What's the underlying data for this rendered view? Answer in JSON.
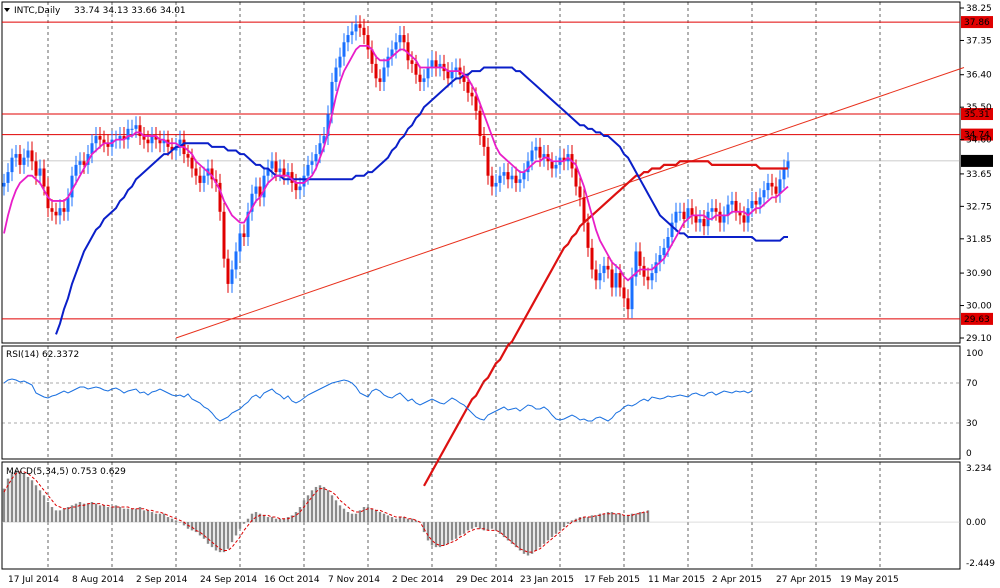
{
  "header": {
    "symbol_label": "INTC,Daily",
    "ohlc": "33.74 34.13 33.66 34.01"
  },
  "rsi_panel": {
    "label": "RSI(14) 62.3372",
    "levels": [
      "100",
      "70",
      "30",
      "0"
    ]
  },
  "macd_panel": {
    "label": "MACD(5,34,5) 0.753 0.629",
    "levels": [
      "3.234",
      "0.00",
      "-2.449"
    ]
  },
  "colors": {
    "ma_fast": "#e81ec8",
    "ma_mid": "#0a1fc9",
    "ma_slow": "#dd1111",
    "trendline": "#e8311d",
    "level": "#e00000",
    "candle_up": "#1a70ff",
    "candle_down": "#e00000",
    "rsi": "#1a70e0",
    "macd_hist": "#8a8a8a",
    "macd_signal": "#dd0000",
    "current_price_bg": "#000000"
  },
  "chart_data": [
    {
      "type": "candlestick",
      "symbol": "INTC",
      "timeframe": "Daily",
      "ylim": [
        29.1,
        38.25
      ],
      "price_axis_ticks": [
        "38.25",
        "37.35",
        "36.40",
        "35.50",
        "34.60",
        "33.65",
        "32.75",
        "31.85",
        "30.90",
        "30.00",
        "29.10"
      ],
      "x_tick_labels": [
        "17 Jul 2014",
        "8 Aug 2014",
        "2 Sep 2014",
        "24 Sep 2014",
        "16 Oct 2014",
        "7 Nov 2014",
        "2 Dec 2014",
        "29 Dec 2014",
        "23 Jan 2015",
        "17 Feb 2015",
        "11 Mar 2015",
        "2 Apr 2015",
        "27 Apr 2015",
        "19 May 2015"
      ],
      "x_tick_index": [
        0,
        16,
        32,
        48,
        64,
        80,
        96,
        112,
        128,
        144,
        160,
        176,
        192,
        208
      ],
      "horizontal_levels": [
        {
          "value": 37.86,
          "label": "37.86"
        },
        {
          "value": 35.31,
          "label": "35.31"
        },
        {
          "value": 34.74,
          "label": "34.74"
        },
        {
          "value": 29.63,
          "label": "29.63"
        }
      ],
      "current_price": {
        "value": 34.01,
        "label": "34.01"
      },
      "trendline": {
        "from": [
          43,
          29.1
        ],
        "to": [
          240,
          36.6
        ]
      },
      "closes": [
        33.4,
        33.7,
        34.1,
        34.2,
        33.9,
        34.1,
        34.3,
        34.0,
        33.6,
        33.8,
        33.3,
        32.7,
        32.6,
        32.5,
        32.7,
        32.6,
        33.0,
        33.6,
        33.9,
        34.0,
        33.9,
        34.2,
        34.5,
        34.7,
        34.6,
        34.5,
        34.4,
        34.6,
        34.6,
        34.7,
        34.6,
        34.9,
        34.9,
        35.0,
        34.7,
        34.6,
        34.5,
        34.7,
        34.6,
        34.5,
        34.6,
        34.4,
        34.3,
        34.4,
        34.6,
        34.2,
        34.1,
        33.8,
        33.6,
        33.4,
        33.6,
        33.8,
        33.5,
        33.4,
        32.6,
        31.3,
        30.6,
        31.0,
        31.5,
        32.0,
        31.9,
        32.6,
        33.1,
        33.3,
        33.0,
        33.6,
        33.8,
        34.0,
        33.7,
        33.8,
        33.6,
        33.7,
        33.4,
        33.2,
        33.3,
        33.6,
        33.9,
        34.0,
        34.2,
        34.5,
        34.7,
        35.3,
        36.2,
        36.6,
        36.9,
        37.3,
        37.5,
        37.6,
        37.8,
        37.7,
        37.5,
        37.1,
        36.7,
        36.3,
        36.2,
        36.6,
        36.9,
        37.1,
        37.3,
        37.5,
        37.3,
        36.8,
        36.7,
        36.4,
        36.2,
        36.3,
        36.6,
        36.8,
        36.6,
        36.7,
        36.5,
        36.3,
        36.5,
        36.6,
        36.4,
        36.2,
        35.9,
        35.8,
        35.4,
        34.7,
        34.4,
        33.6,
        33.3,
        33.4,
        33.6,
        33.7,
        33.5,
        33.6,
        33.4,
        33.5,
        33.7,
        34.0,
        34.3,
        34.4,
        34.1,
        34.2,
        34.0,
        33.8,
        33.9,
        34.1,
        34.0,
        34.2,
        33.8,
        33.3,
        33.0,
        32.3,
        31.6,
        31.0,
        30.7,
        30.9,
        31.1,
        31.0,
        30.5,
        30.9,
        30.5,
        30.2,
        29.9,
        30.8,
        31.5,
        31.1,
        30.8,
        30.7,
        30.9,
        31.2,
        31.4,
        31.6,
        31.9,
        32.3,
        32.6,
        32.6,
        32.4,
        32.7,
        32.5,
        32.3,
        32.4,
        32.2,
        32.6,
        32.7,
        32.6,
        32.3,
        32.5,
        32.8,
        32.9,
        32.6,
        32.5,
        32.3,
        32.7,
        32.9,
        32.8,
        33.0,
        33.2,
        33.4,
        33.3,
        33.1,
        33.5,
        33.8,
        34.0
      ],
      "ma_fast": [
        32.0,
        32.5,
        32.9,
        33.2,
        33.4,
        33.5,
        33.6,
        33.6,
        33.5,
        33.4,
        33.2,
        33.0,
        32.9,
        32.9,
        32.9,
        32.9,
        33.0,
        33.2,
        33.4,
        33.6,
        33.8,
        34.0,
        34.2,
        34.3,
        34.4,
        34.5,
        34.5,
        34.5,
        34.6,
        34.6,
        34.6,
        34.7,
        34.7,
        34.8,
        34.8,
        34.7,
        34.7,
        34.7,
        34.7,
        34.6,
        34.6,
        34.5,
        34.5,
        34.5,
        34.4,
        34.4,
        34.3,
        34.2,
        34.0,
        33.9,
        33.8,
        33.7,
        33.6,
        33.4,
        33.2,
        32.9,
        32.7,
        32.5,
        32.4,
        32.3,
        32.3,
        32.5,
        32.7,
        32.9,
        33.0,
        33.2,
        33.4,
        33.5,
        33.6,
        33.6,
        33.6,
        33.6,
        33.5,
        33.4,
        33.4,
        33.4,
        33.5,
        33.6,
        33.8,
        34.1,
        34.4,
        34.8,
        35.3,
        35.8,
        36.2,
        36.5,
        36.7,
        36.9,
        37.1,
        37.2,
        37.2,
        37.2,
        37.1,
        36.9,
        36.8,
        36.8,
        36.8,
        36.9,
        37.0,
        37.1,
        37.1,
        37.0,
        36.9,
        36.8,
        36.6,
        36.6,
        36.6,
        36.6,
        36.6,
        36.6,
        36.6,
        36.5,
        36.5,
        36.5,
        36.5,
        36.4,
        36.3,
        36.1,
        35.9,
        35.6,
        35.3,
        35.0,
        34.7,
        34.4,
        34.2,
        34.1,
        34.0,
        33.9,
        33.8,
        33.7,
        33.7,
        33.8,
        33.9,
        34.0,
        34.0,
        34.1,
        34.1,
        34.0,
        34.0,
        34.0,
        34.0,
        34.1,
        34.0,
        33.9,
        33.6,
        33.3,
        32.9,
        32.5,
        32.1,
        31.8,
        31.6,
        31.4,
        31.2,
        31.1,
        31.0,
        30.8,
        30.7,
        30.8,
        30.9,
        31.0,
        31.0,
        31.0,
        31.0,
        31.1,
        31.2,
        31.3,
        31.5,
        31.7,
        31.9,
        32.1,
        32.3,
        32.4,
        32.5,
        32.5,
        32.5,
        32.5,
        32.4,
        32.4,
        32.5,
        32.5,
        32.5,
        32.5,
        32.6,
        32.6,
        32.6,
        32.6,
        32.5,
        32.6,
        32.7,
        32.7,
        32.8,
        32.9,
        33.0,
        33.0,
        33.1,
        33.2,
        33.3
      ],
      "ma_mid": [
        29.2,
        29.5,
        29.9,
        30.2,
        30.6,
        30.9,
        31.2,
        31.5,
        31.7,
        31.9,
        32.1,
        32.2,
        32.4,
        32.5,
        32.6,
        32.7,
        32.9,
        33.0,
        33.2,
        33.3,
        33.5,
        33.6,
        33.7,
        33.8,
        33.9,
        34.0,
        34.1,
        34.2,
        34.2,
        34.3,
        34.4,
        34.4,
        34.5,
        34.5,
        34.5,
        34.5,
        34.5,
        34.5,
        34.5,
        34.4,
        34.4,
        34.4,
        34.4,
        34.3,
        34.3,
        34.3,
        34.2,
        34.2,
        34.1,
        34.0,
        33.9,
        33.9,
        33.8,
        33.8,
        33.7,
        33.6,
        33.6,
        33.5,
        33.5,
        33.5,
        33.5,
        33.5,
        33.5,
        33.5,
        33.5,
        33.5,
        33.5,
        33.5,
        33.5,
        33.5,
        33.5,
        33.5,
        33.5,
        33.5,
        33.5,
        33.6,
        33.6,
        33.6,
        33.7,
        33.7,
        33.8,
        33.9,
        34.0,
        34.1,
        34.3,
        34.4,
        34.6,
        34.7,
        34.9,
        35.0,
        35.2,
        35.3,
        35.5,
        35.6,
        35.7,
        35.8,
        35.9,
        36.0,
        36.1,
        36.2,
        36.3,
        36.3,
        36.4,
        36.4,
        36.5,
        36.5,
        36.5,
        36.6,
        36.6,
        36.6,
        36.6,
        36.6,
        36.6,
        36.6,
        36.6,
        36.5,
        36.5,
        36.4,
        36.3,
        36.2,
        36.1,
        36.0,
        35.9,
        35.8,
        35.7,
        35.6,
        35.5,
        35.4,
        35.3,
        35.2,
        35.1,
        35.0,
        35.0,
        34.9,
        34.9,
        34.8,
        34.8,
        34.7,
        34.7,
        34.6,
        34.5,
        34.4,
        34.2,
        34.1,
        33.9,
        33.7,
        33.5,
        33.3,
        33.1,
        32.9,
        32.7,
        32.5,
        32.4,
        32.3,
        32.2,
        32.1,
        32.0,
        32.0,
        31.9,
        31.9,
        31.9,
        31.9,
        31.9,
        31.9,
        31.9,
        31.9,
        31.9,
        31.9,
        31.9,
        31.9,
        31.9,
        31.9,
        31.9,
        31.9,
        31.9,
        31.8,
        31.8,
        31.8,
        31.8,
        31.8,
        31.8,
        31.8,
        31.9,
        31.9
      ],
      "ma_slow": [
        25.0,
        25.2,
        25.4,
        25.6,
        25.8,
        26.0,
        26.2,
        26.4,
        26.6,
        26.8,
        27.0,
        27.2,
        27.4,
        27.5,
        27.7,
        27.9,
        28.0,
        28.2,
        28.4,
        28.5,
        28.7,
        28.9,
        29.0,
        29.2,
        29.4,
        29.6,
        29.8,
        30.0,
        30.2,
        30.4,
        30.6,
        30.8,
        31.0,
        31.2,
        31.4,
        31.6,
        31.7,
        31.9,
        32.0,
        32.2,
        32.3,
        32.4,
        32.5,
        32.6,
        32.7,
        32.8,
        32.9,
        33.0,
        33.1,
        33.2,
        33.3,
        33.4,
        33.5,
        33.6,
        33.6,
        33.7,
        33.7,
        33.8,
        33.8,
        33.8,
        33.9,
        33.9,
        33.9,
        33.9,
        34.0,
        34.0,
        34.0,
        34.0,
        34.0,
        34.0,
        34.0,
        34.0,
        33.9,
        33.9,
        33.9,
        33.9,
        33.9,
        33.9,
        33.9,
        33.9,
        33.9,
        33.9,
        33.9,
        33.9,
        33.8,
        33.8,
        33.8,
        33.8,
        33.8,
        33.8,
        33.8,
        33.8
      ]
    },
    {
      "type": "line",
      "name": "RSI(14)",
      "ylim": [
        0,
        100
      ],
      "levels": [
        70,
        30
      ],
      "values": [
        70,
        73,
        74,
        73,
        71,
        72,
        70,
        68,
        60,
        58,
        56,
        55,
        57,
        58,
        60,
        62,
        60,
        62,
        64,
        66,
        66,
        64,
        65,
        66,
        65,
        63,
        62,
        64,
        65,
        63,
        60,
        62,
        63,
        64,
        60,
        61,
        58,
        61,
        62,
        64,
        62,
        60,
        58,
        57,
        58,
        56,
        59,
        54,
        52,
        50,
        46,
        44,
        40,
        35,
        32,
        34,
        36,
        40,
        42,
        44,
        48,
        51,
        56,
        58,
        55,
        60,
        62,
        64,
        60,
        58,
        54,
        57,
        52,
        50,
        52,
        55,
        58,
        60,
        62,
        64,
        66,
        68,
        70,
        71,
        72,
        73,
        72,
        70,
        66,
        60,
        58,
        56,
        62,
        64,
        62,
        58,
        56,
        55,
        58,
        60,
        56,
        52,
        54,
        50,
        48,
        50,
        52,
        54,
        52,
        50,
        49,
        52,
        55,
        53,
        50,
        48,
        44,
        40,
        36,
        34,
        33,
        38,
        40,
        42,
        44,
        46,
        43,
        44,
        45,
        42,
        45,
        48,
        47,
        44,
        44,
        46,
        43,
        38,
        34,
        33,
        34,
        36,
        38,
        36,
        33,
        34,
        32,
        32,
        35,
        36,
        34,
        32,
        35,
        40,
        42,
        46,
        48,
        47,
        49,
        52,
        54,
        52,
        56,
        55,
        54,
        55,
        57,
        56,
        57,
        58,
        57,
        56,
        59,
        60,
        58,
        57,
        60,
        61,
        58,
        60,
        62,
        61,
        60,
        62,
        61,
        62,
        60,
        62
      ]
    },
    {
      "type": "bar",
      "name": "MACD(5,34,5)",
      "ylim": [
        -2.449,
        3.234
      ],
      "histogram": [
        2.0,
        2.6,
        3.0,
        3.1,
        3.0,
        2.9,
        2.7,
        2.5,
        2.2,
        1.9,
        1.6,
        1.2,
        0.9,
        0.7,
        0.7,
        0.8,
        0.9,
        1.0,
        1.1,
        1.2,
        1.1,
        1.1,
        1.2,
        1.1,
        1.0,
        1.0,
        0.9,
        0.9,
        1.0,
        0.9,
        0.8,
        0.8,
        0.8,
        0.8,
        0.9,
        0.7,
        0.7,
        0.6,
        0.5,
        0.5,
        0.5,
        0.3,
        0.2,
        0.1,
        0.0,
        -0.2,
        -0.4,
        -0.5,
        -0.6,
        -0.8,
        -1.0,
        -1.3,
        -1.5,
        -1.7,
        -1.8,
        -1.8,
        -1.6,
        -1.2,
        -0.8,
        -0.4,
        -0.1,
        0.2,
        0.5,
        0.6,
        0.5,
        0.4,
        0.3,
        0.3,
        0.2,
        0.2,
        0.2,
        0.3,
        0.4,
        0.6,
        0.9,
        1.3,
        1.6,
        1.9,
        2.1,
        2.2,
        2.1,
        1.9,
        1.6,
        1.3,
        1.0,
        0.8,
        0.6,
        0.5,
        0.5,
        0.7,
        0.9,
        0.9,
        0.8,
        0.7,
        0.6,
        0.5,
        0.4,
        0.3,
        0.2,
        0.3,
        0.3,
        0.2,
        0.2,
        0.1,
        0.0,
        -0.6,
        -1.1,
        -1.4,
        -1.5,
        -1.5,
        -1.4,
        -1.3,
        -1.1,
        -1.0,
        -0.8,
        -0.7,
        -0.5,
        -0.4,
        -0.3,
        -0.4,
        -0.5,
        -0.5,
        -0.4,
        -0.5,
        -0.7,
        -0.9,
        -1.1,
        -1.3,
        -1.5,
        -1.7,
        -1.9,
        -2.0,
        -1.9,
        -1.7,
        -1.5,
        -1.3,
        -1.1,
        -0.9,
        -0.7,
        -0.5,
        -0.3,
        -0.1,
        0.1,
        0.2,
        0.3,
        0.3,
        0.3,
        0.4,
        0.4,
        0.5,
        0.5,
        0.6,
        0.6,
        0.5,
        0.5,
        0.4,
        0.4,
        0.5,
        0.5,
        0.6,
        0.6,
        0.7
      ],
      "signal": [
        1.8,
        2.2,
        2.6,
        2.9,
        3.0,
        3.0,
        2.9,
        2.7,
        2.5,
        2.2,
        1.9,
        1.6,
        1.3,
        1.0,
        0.9,
        0.8,
        0.8,
        0.9,
        0.9,
        1.0,
        1.0,
        1.1,
        1.1,
        1.1,
        1.1,
        1.0,
        1.0,
        0.9,
        0.9,
        0.9,
        0.9,
        0.9,
        0.8,
        0.8,
        0.8,
        0.8,
        0.7,
        0.7,
        0.6,
        0.6,
        0.5,
        0.4,
        0.3,
        0.2,
        0.1,
        0.0,
        -0.2,
        -0.3,
        -0.5,
        -0.6,
        -0.8,
        -1.0,
        -1.2,
        -1.4,
        -1.6,
        -1.7,
        -1.7,
        -1.5,
        -1.2,
        -0.9,
        -0.5,
        -0.2,
        0.1,
        0.3,
        0.4,
        0.4,
        0.4,
        0.3,
        0.3,
        0.2,
        0.2,
        0.2,
        0.3,
        0.4,
        0.6,
        0.9,
        1.2,
        1.5,
        1.8,
        2.0,
        2.0,
        1.9,
        1.8,
        1.6,
        1.3,
        1.1,
        0.9,
        0.7,
        0.6,
        0.6,
        0.7,
        0.8,
        0.8,
        0.7,
        0.7,
        0.6,
        0.5,
        0.4,
        0.3,
        0.3,
        0.3,
        0.2,
        0.2,
        0.1,
        0.0,
        -0.4,
        -0.8,
        -1.1,
        -1.3,
        -1.4,
        -1.4,
        -1.3,
        -1.2,
        -1.1,
        -0.9,
        -0.8,
        -0.6,
        -0.5,
        -0.4,
        -0.4,
        -0.4,
        -0.5,
        -0.5,
        -0.5,
        -0.6,
        -0.8,
        -1.0,
        -1.2,
        -1.4,
        -1.6,
        -1.7,
        -1.8,
        -1.8,
        -1.7,
        -1.6,
        -1.4,
        -1.2,
        -1.0,
        -0.8,
        -0.6,
        -0.4,
        -0.2,
        0.0,
        0.1,
        0.2,
        0.3,
        0.3,
        0.3,
        0.4,
        0.4,
        0.5,
        0.5,
        0.5,
        0.5,
        0.5,
        0.4,
        0.4,
        0.4,
        0.5,
        0.5,
        0.6,
        0.6
      ]
    }
  ]
}
